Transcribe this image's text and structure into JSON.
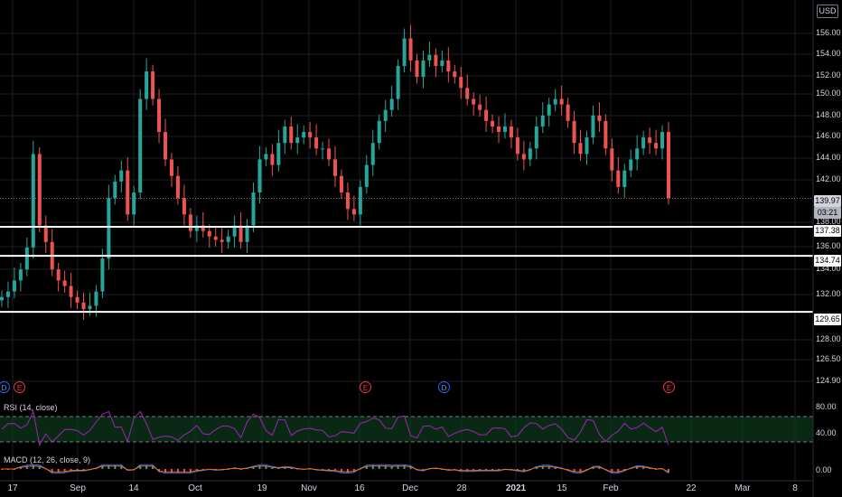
{
  "header": {
    "currency": "USD"
  },
  "price_axis": {
    "labels": [
      "156.00",
      "154.00",
      "152.00",
      "150.00",
      "148.00",
      "146.00",
      "144.00",
      "142.00",
      "138.00",
      "136.00",
      "134.00",
      "132.00",
      "128.00",
      "126.50",
      "124.90"
    ],
    "current_price": "139.97",
    "countdown": "03:21",
    "levels": [
      "137.38",
      "134.74",
      "129.65"
    ]
  },
  "rsi": {
    "title": "RSI (14, close)",
    "labels": [
      "80.00",
      "40.00"
    ],
    "upper": 70,
    "lower": 30
  },
  "macd": {
    "title": "MACD (12, 26, close, 9)",
    "labels": [
      "0.00"
    ]
  },
  "time_axis": {
    "labels": [
      {
        "text": "17",
        "bold": false
      },
      {
        "text": "Sep",
        "bold": false
      },
      {
        "text": "14",
        "bold": false
      },
      {
        "text": "Oct",
        "bold": false
      },
      {
        "text": "19",
        "bold": false
      },
      {
        "text": "Nov",
        "bold": false
      },
      {
        "text": "16",
        "bold": false
      },
      {
        "text": "Dec",
        "bold": false
      },
      {
        "text": "28",
        "bold": false
      },
      {
        "text": "2021",
        "bold": true
      },
      {
        "text": "15",
        "bold": false
      },
      {
        "text": "Feb",
        "bold": false
      },
      {
        "text": "22",
        "bold": false
      },
      {
        "text": "Mar",
        "bold": false
      },
      {
        "text": "8",
        "bold": false
      }
    ]
  },
  "events": [
    {
      "type": "dividend",
      "text": "D"
    },
    {
      "type": "earnings",
      "text": "E"
    },
    {
      "type": "earnings",
      "text": "E"
    },
    {
      "type": "dividend",
      "text": "D"
    },
    {
      "type": "earnings",
      "text": "E"
    }
  ],
  "colors": {
    "up": "#26a69a",
    "down": "#ef5350",
    "rsi": "#9c27b0",
    "macd": "#2962ff",
    "signal": "#ff6d00",
    "level": "#ffffff"
  },
  "chart_data": {
    "type": "candlestick",
    "close": [
      131.0,
      131.5,
      132.5,
      133.5,
      135.5,
      144.0,
      137.5,
      136.0,
      133.5,
      132.5,
      132.0,
      131.0,
      130.5,
      129.9,
      130.2,
      131.5,
      134.5,
      140.0,
      141.5,
      142.5,
      138.5,
      140.5,
      149.0,
      151.5,
      149.0,
      146.0,
      143.5,
      142.0,
      140.0,
      138.5,
      137.0,
      137.5,
      137.0,
      136.5,
      136.2,
      136.0,
      136.5,
      137.5,
      136.0,
      137.5,
      140.5,
      143.5,
      144.0,
      143.0,
      145.0,
      146.5,
      145.0,
      145.5,
      146.0,
      145.5,
      144.5,
      144.5,
      143.5,
      142.0,
      140.5,
      139.0,
      138.5,
      141.0,
      143.0,
      145.0,
      147.0,
      148.0,
      149.0,
      152.0,
      154.5,
      152.5,
      151.0,
      152.5,
      153.0,
      152.0,
      152.5,
      151.5,
      151.0,
      150.0,
      149.0,
      148.5,
      148.0,
      147.0,
      146.5,
      146.0,
      146.5,
      145.5,
      144.0,
      143.5,
      144.5,
      146.5,
      147.5,
      148.5,
      149.0,
      148.5,
      147.0,
      145.0,
      144.0,
      145.5,
      147.5,
      147.0,
      144.5,
      142.5,
      141.0,
      142.5,
      143.5,
      144.5,
      145.5,
      145.0,
      144.5,
      146.0,
      140.0
    ],
    "rsi_range": [
      20,
      100
    ],
    "levels": [
      137.38,
      134.74,
      129.65
    ],
    "current": 139.97,
    "ylim": [
      123.5,
      157.5
    ]
  }
}
